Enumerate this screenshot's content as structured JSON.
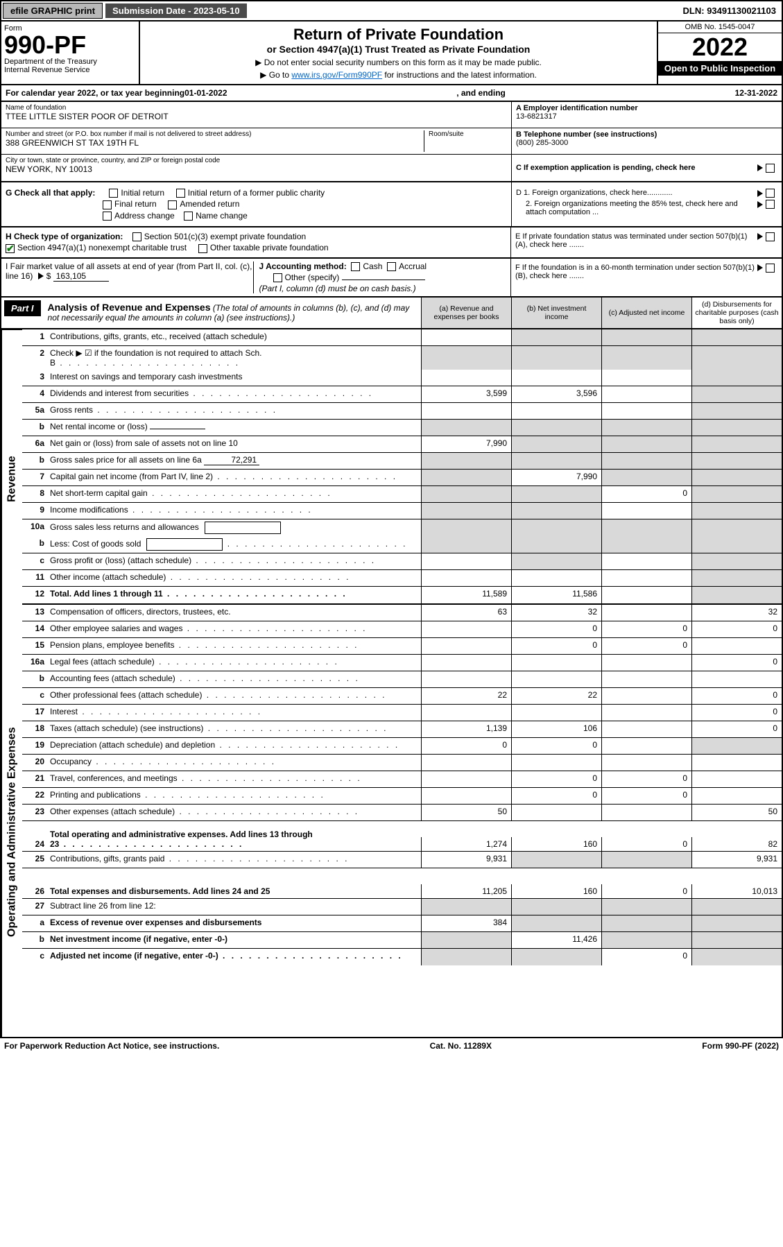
{
  "meta": {
    "efile_btn": "efile GRAPHIC print",
    "submission": "Submission Date - 2023-05-10",
    "dln": "DLN: 93491130021103",
    "omb": "OMB No. 1545-0047",
    "form_label": "Form",
    "form_no": "990-PF",
    "dept": "Department of the Treasury",
    "irs": "Internal Revenue Service",
    "title": "Return of Private Foundation",
    "subtitle": "or Section 4947(a)(1) Trust Treated as Private Foundation",
    "instr1": "▶ Do not enter social security numbers on this form as it may be made public.",
    "instr2_pre": "▶ Go to ",
    "instr2_link": "www.irs.gov/Form990PF",
    "instr2_post": " for instructions and the latest information.",
    "year": "2022",
    "open": "Open to Public Inspection",
    "cal_pre": "For calendar year 2022, or tax year beginning ",
    "cal_begin": "01-01-2022",
    "cal_mid": ", and ending ",
    "cal_end": "12-31-2022"
  },
  "ident": {
    "name_label": "Name of foundation",
    "name": "TTEE LITTLE SISTER POOR OF DETROIT",
    "addr_label": "Number and street (or P.O. box number if mail is not delivered to street address)",
    "addr": "388 GREENWICH ST TAX 19TH FL",
    "room_label": "Room/suite",
    "city_label": "City or town, state or province, country, and ZIP or foreign postal code",
    "city": "NEW YORK, NY  10013",
    "a_label": "A Employer identification number",
    "a_val": "13-6821317",
    "b_label": "B Telephone number (see instructions)",
    "b_val": "(800) 285-3000",
    "c_label": "C If exemption application is pending, check here",
    "d1": "D 1. Foreign organizations, check here............",
    "d2": "2. Foreign organizations meeting the 85% test, check here and attach computation ...",
    "e": "E  If private foundation status was terminated under section 507(b)(1)(A), check here .......",
    "f": "F  If the foundation is in a 60-month termination under section 507(b)(1)(B), check here ......."
  },
  "checks": {
    "g_label": "G Check all that apply:",
    "g_initial": "Initial return",
    "g_initial_former": "Initial return of a former public charity",
    "g_final": "Final return",
    "g_amended": "Amended return",
    "g_address": "Address change",
    "g_name": "Name change",
    "h_label": "H Check type of organization:",
    "h_501": "Section 501(c)(3) exempt private foundation",
    "h_4947": "Section 4947(a)(1) nonexempt charitable trust",
    "h_other": "Other taxable private foundation",
    "i_label": "I Fair market value of all assets at end of year (from Part II, col. (c), line 16)",
    "i_val": "163,105",
    "j_label": "J Accounting method:",
    "j_cash": "Cash",
    "j_accrual": "Accrual",
    "j_other": "Other (specify)",
    "j_note": "(Part I, column (d) must be on cash basis.)"
  },
  "part1": {
    "label": "Part I",
    "title": "Analysis of Revenue and Expenses",
    "note": "(The total of amounts in columns (b), (c), and (d) may not necessarily equal the amounts in column (a) (see instructions).)",
    "col_a": "(a)   Revenue and expenses per books",
    "col_b": "(b)   Net investment income",
    "col_c": "(c)   Adjusted net income",
    "col_d": "(d)  Disbursements for charitable purposes (cash basis only)"
  },
  "sides": {
    "revenue": "Revenue",
    "expenses": "Operating and Administrative Expenses"
  },
  "rows": [
    {
      "n": "1",
      "d": "Contributions, gifts, grants, etc., received (attach schedule)",
      "a": "",
      "b": "s",
      "c": "s",
      "dd": "s"
    },
    {
      "n": "2",
      "d": "Check ▶ ☑ if the foundation is not required to attach Sch. B",
      "dots": true,
      "a": "s",
      "b": "s",
      "c": "s",
      "dd": "s",
      "nb": true
    },
    {
      "n": "3",
      "d": "Interest on savings and temporary cash investments",
      "a": "",
      "b": "",
      "c": "",
      "dd": "s"
    },
    {
      "n": "4",
      "d": "Dividends and interest from securities",
      "dots": true,
      "a": "3,599",
      "b": "3,596",
      "c": "",
      "dd": "s"
    },
    {
      "n": "5a",
      "d": "Gross rents",
      "dots": true,
      "a": "",
      "b": "",
      "c": "",
      "dd": "s"
    },
    {
      "n": "b",
      "d": "Net rental income or (loss)",
      "inner_underline": true,
      "a": "s",
      "b": "s",
      "c": "s",
      "dd": "s"
    },
    {
      "n": "6a",
      "d": "Net gain or (loss) from sale of assets not on line 10",
      "a": "7,990",
      "b": "s",
      "c": "s",
      "dd": "s"
    },
    {
      "n": "b",
      "d": "Gross sales price for all assets on line 6a",
      "inner_val": "72,291",
      "a": "s",
      "b": "s",
      "c": "s",
      "dd": "s"
    },
    {
      "n": "7",
      "d": "Capital gain net income (from Part IV, line 2)",
      "dots": true,
      "a": "s",
      "b": "7,990",
      "c": "s",
      "dd": "s"
    },
    {
      "n": "8",
      "d": "Net short-term capital gain",
      "dots": true,
      "a": "s",
      "b": "s",
      "c": "0",
      "dd": "s"
    },
    {
      "n": "9",
      "d": "Income modifications",
      "dots": true,
      "a": "s",
      "b": "s",
      "c": "",
      "dd": "s"
    },
    {
      "n": "10a",
      "d": "Gross sales less returns and allowances",
      "inner_box": true,
      "a": "s",
      "b": "s",
      "c": "s",
      "dd": "s",
      "nb": true
    },
    {
      "n": "b",
      "d": "Less: Cost of goods sold",
      "dots": true,
      "inner_box": true,
      "a": "s",
      "b": "s",
      "c": "s",
      "dd": "s"
    },
    {
      "n": "c",
      "d": "Gross profit or (loss) (attach schedule)",
      "dots": true,
      "a": "",
      "b": "s",
      "c": "",
      "dd": "s"
    },
    {
      "n": "11",
      "d": "Other income (attach schedule)",
      "dots": true,
      "a": "",
      "b": "",
      "c": "",
      "dd": "s"
    },
    {
      "n": "12",
      "d": "Total. Add lines 1 through 11",
      "bold": true,
      "dots": true,
      "a": "11,589",
      "b": "11,586",
      "c": "",
      "dd": "s"
    }
  ],
  "exp_rows": [
    {
      "n": "13",
      "d": "Compensation of officers, directors, trustees, etc.",
      "a": "63",
      "b": "32",
      "c": "",
      "dd": "32"
    },
    {
      "n": "14",
      "d": "Other employee salaries and wages",
      "dots": true,
      "a": "",
      "b": "0",
      "c": "0",
      "dd": "0"
    },
    {
      "n": "15",
      "d": "Pension plans, employee benefits",
      "dots": true,
      "a": "",
      "b": "0",
      "c": "0",
      "dd": ""
    },
    {
      "n": "16a",
      "d": "Legal fees (attach schedule)",
      "dots": true,
      "a": "",
      "b": "",
      "c": "",
      "dd": "0"
    },
    {
      "n": "b",
      "d": "Accounting fees (attach schedule)",
      "dots": true,
      "a": "",
      "b": "",
      "c": "",
      "dd": ""
    },
    {
      "n": "c",
      "d": "Other professional fees (attach schedule)",
      "dots": true,
      "a": "22",
      "b": "22",
      "c": "",
      "dd": "0"
    },
    {
      "n": "17",
      "d": "Interest",
      "dots": true,
      "a": "",
      "b": "",
      "c": "",
      "dd": "0"
    },
    {
      "n": "18",
      "d": "Taxes (attach schedule) (see instructions)",
      "dots": true,
      "a": "1,139",
      "b": "106",
      "c": "",
      "dd": "0"
    },
    {
      "n": "19",
      "d": "Depreciation (attach schedule) and depletion",
      "dots": true,
      "a": "0",
      "b": "0",
      "c": "",
      "dd": "s"
    },
    {
      "n": "20",
      "d": "Occupancy",
      "dots": true,
      "a": "",
      "b": "",
      "c": "",
      "dd": ""
    },
    {
      "n": "21",
      "d": "Travel, conferences, and meetings",
      "dots": true,
      "a": "",
      "b": "0",
      "c": "0",
      "dd": ""
    },
    {
      "n": "22",
      "d": "Printing and publications",
      "dots": true,
      "a": "",
      "b": "0",
      "c": "0",
      "dd": ""
    },
    {
      "n": "23",
      "d": "Other expenses (attach schedule)",
      "dots": true,
      "a": "50",
      "b": "",
      "c": "",
      "dd": "50"
    },
    {
      "n": "24",
      "d": "Total operating and administrative expenses. Add lines 13 through 23",
      "bold": true,
      "dots": true,
      "a": "1,274",
      "b": "160",
      "c": "0",
      "dd": "82",
      "tall": true
    },
    {
      "n": "25",
      "d": "Contributions, gifts, grants paid",
      "dots": true,
      "a": "9,931",
      "b": "s",
      "c": "s",
      "dd": "9,931"
    },
    {
      "n": "26",
      "d": "Total expenses and disbursements. Add lines 24 and 25",
      "bold": true,
      "a": "11,205",
      "b": "160",
      "c": "0",
      "dd": "10,013",
      "tall": true
    },
    {
      "n": "27",
      "d": "Subtract line 26 from line 12:",
      "a": "s",
      "b": "s",
      "c": "s",
      "dd": "s"
    },
    {
      "n": "a",
      "d": "Excess of revenue over expenses and disbursements",
      "bold": true,
      "a": "384",
      "b": "s",
      "c": "s",
      "dd": "s"
    },
    {
      "n": "b",
      "d": "Net investment income (if negative, enter -0-)",
      "bold": true,
      "a": "s",
      "b": "11,426",
      "c": "s",
      "dd": "s"
    },
    {
      "n": "c",
      "d": "Adjusted net income (if negative, enter -0-)",
      "bold": true,
      "dots": true,
      "a": "s",
      "b": "s",
      "c": "0",
      "dd": "s"
    }
  ],
  "footer": {
    "left": "For Paperwork Reduction Act Notice, see instructions.",
    "mid": "Cat. No. 11289X",
    "right": "Form 990-PF (2022)"
  },
  "colors": {
    "shaded": "#d9d9d9",
    "link": "#0066cc",
    "check": "#0a7a0a"
  }
}
